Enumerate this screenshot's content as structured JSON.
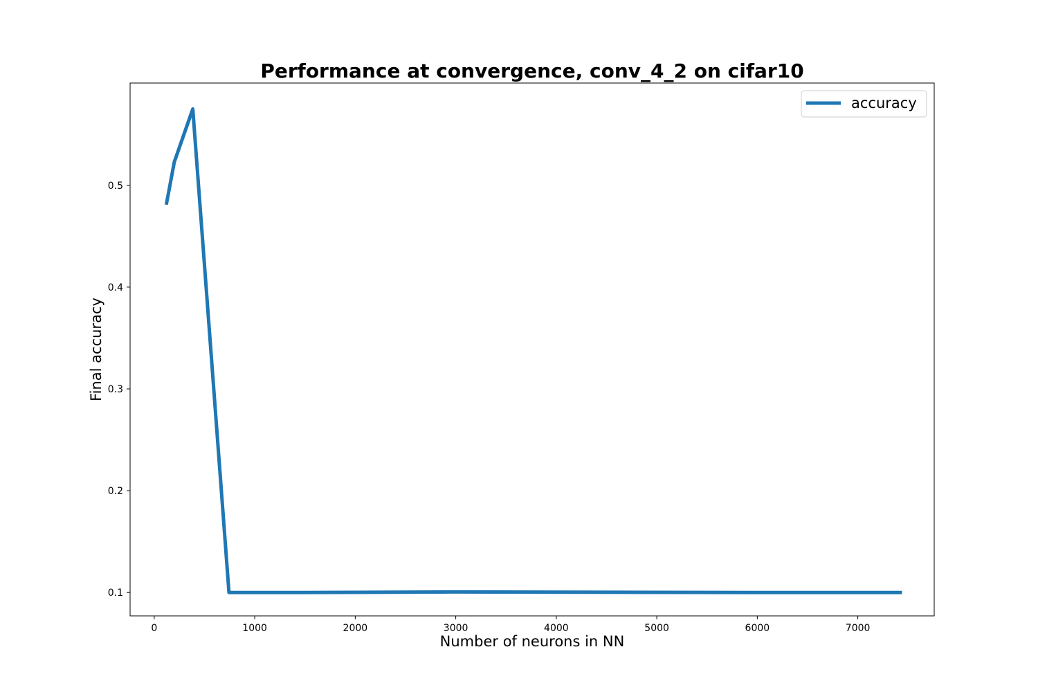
{
  "chart_data": {
    "type": "line",
    "title": "Performance at convergence, conv_4_2 on cifar10",
    "xlabel": "Number of neurons in NN",
    "ylabel": "Final accuracy",
    "xlim": [
      -240,
      7760
    ],
    "ylim": [
      0.077,
      0.6005
    ],
    "xticks": [
      0,
      1000,
      2000,
      3000,
      4000,
      5000,
      6000,
      7000
    ],
    "yticks": [
      0.1,
      0.2,
      0.3,
      0.4,
      0.5
    ],
    "ytick_labels": [
      "0.1",
      "0.2",
      "0.3",
      "0.4",
      "0.5"
    ],
    "grid": false,
    "legend_position": "top-right",
    "series": [
      {
        "name": "accuracy",
        "color": "#1f77b4",
        "x": [
          120,
          200,
          384,
          744,
          1488,
          2976,
          5952,
          7440
        ],
        "y": [
          0.481,
          0.523,
          0.575,
          0.1,
          0.1,
          0.1005,
          0.1,
          0.1
        ]
      }
    ]
  }
}
